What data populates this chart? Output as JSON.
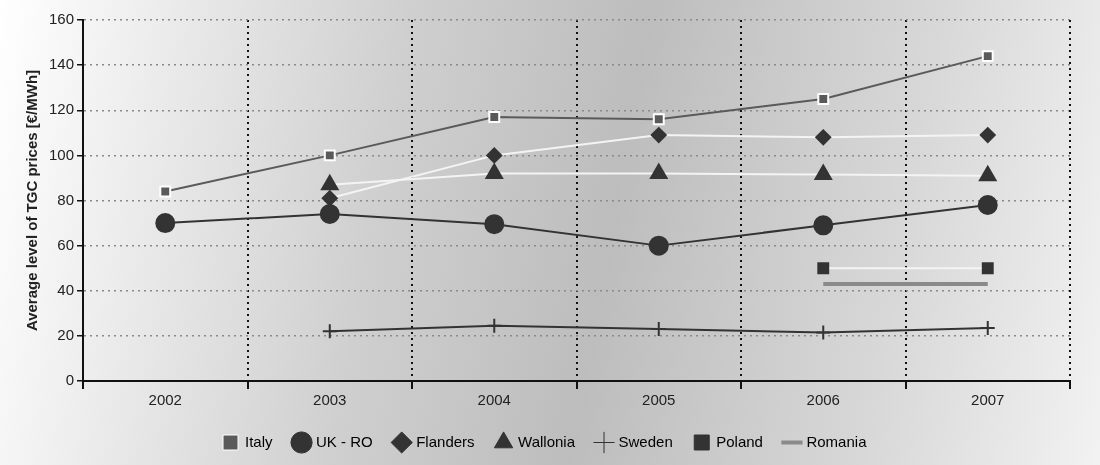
{
  "chart_data": {
    "type": "line",
    "ylabel": "Average level of TGC prices [€/MWh]",
    "categories": [
      "2002",
      "2003",
      "2004",
      "2005",
      "2006",
      "2007"
    ],
    "ylim": [
      0,
      160
    ],
    "yticks": [
      0,
      20,
      40,
      60,
      80,
      100,
      120,
      140,
      160
    ],
    "grid": true,
    "legend": "bottom",
    "line_style": "solid",
    "series": [
      {
        "name": "Italy",
        "color": "#5a5a5a",
        "marker": "square",
        "values": [
          84,
          100,
          117,
          116,
          125,
          144
        ]
      },
      {
        "name": "UK - RO",
        "color": "#333333",
        "marker": "circle",
        "values": [
          70,
          74,
          69.5,
          60,
          69,
          78
        ]
      },
      {
        "name": "Flanders",
        "color": "#f4f4f4",
        "marker": "diamond",
        "values": [
          null,
          81,
          100,
          109,
          108,
          109
        ]
      },
      {
        "name": "Wallonia",
        "color": "#f4f4f4",
        "marker": "triangle",
        "values": [
          null,
          87,
          92,
          92,
          91.5,
          91
        ]
      },
      {
        "name": "Sweden",
        "color": "#333333",
        "marker": "cross",
        "values": [
          null,
          22,
          24.5,
          23,
          21.5,
          23.5
        ]
      },
      {
        "name": "Poland",
        "color": "#f4f4f4",
        "marker": "square",
        "values": [
          null,
          null,
          null,
          null,
          50,
          50
        ]
      },
      {
        "name": "Romania",
        "color": "#8a8a8a",
        "marker": "none",
        "values": [
          null,
          null,
          null,
          null,
          43,
          43
        ]
      }
    ]
  }
}
